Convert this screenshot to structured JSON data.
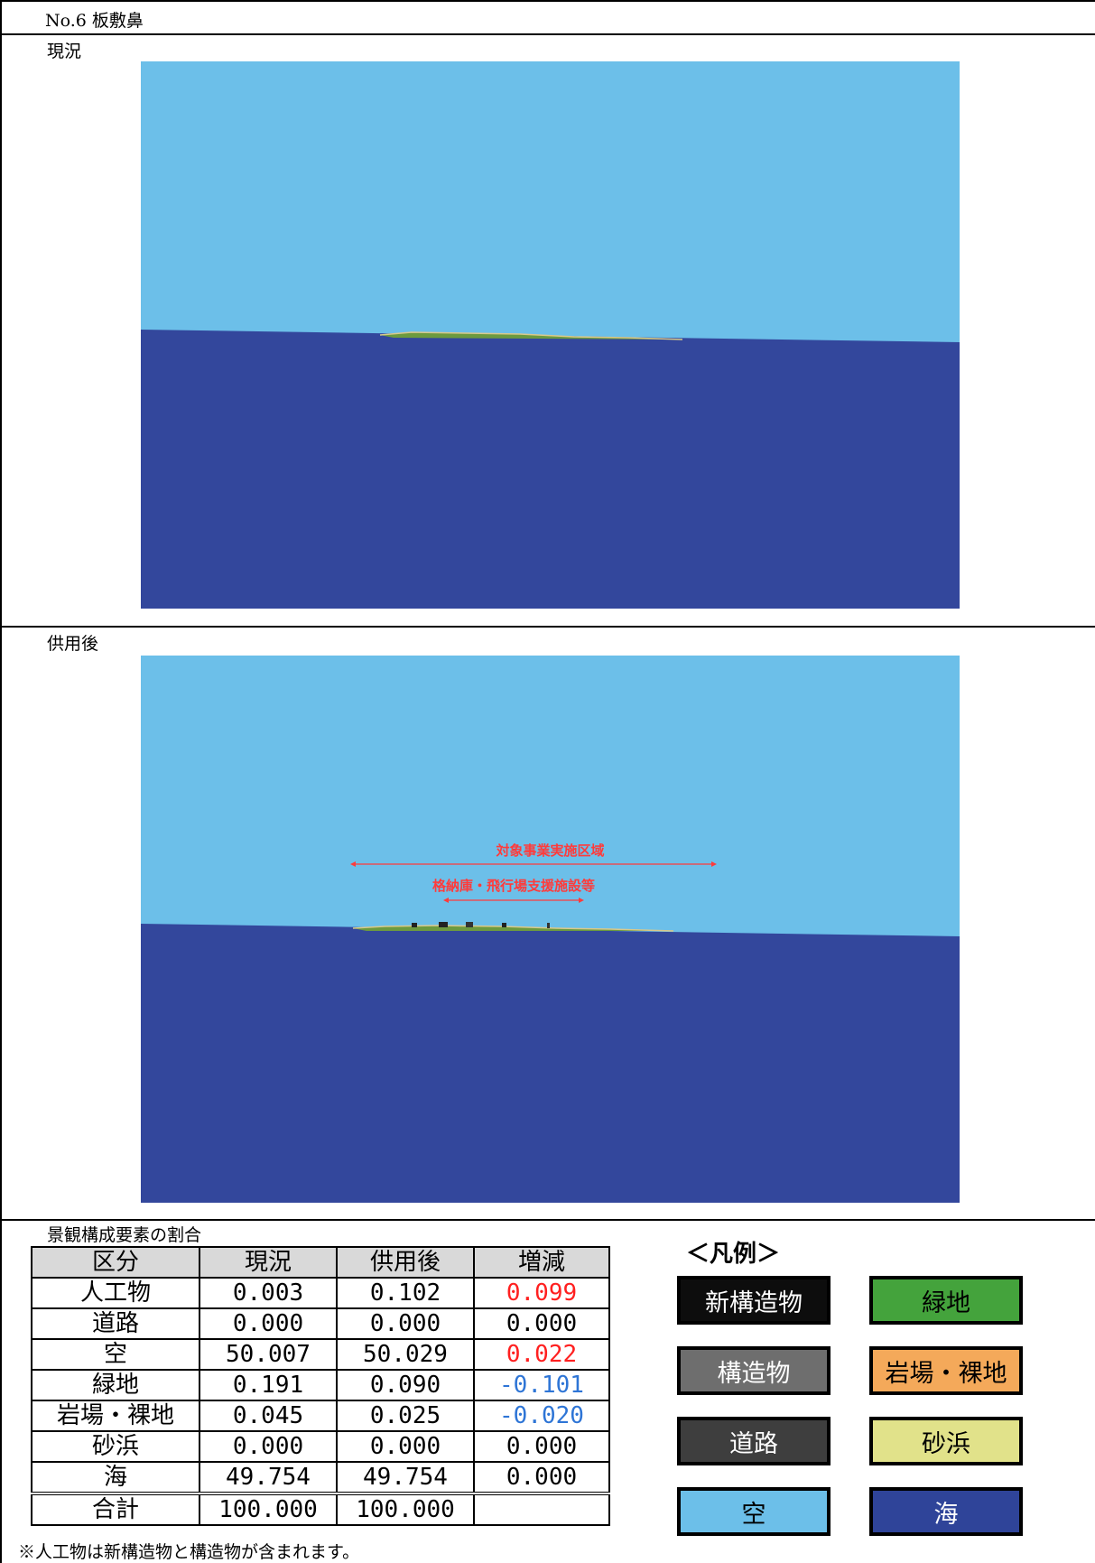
{
  "header": {
    "title": "No.6 板敷鼻"
  },
  "sections": {
    "current": {
      "label": "現況"
    },
    "after": {
      "label": "供用後",
      "annotation_outer": "対象事業実施区域",
      "annotation_inner": "格納庫・飛行場支援施設等"
    }
  },
  "table": {
    "caption": "景観構成要素の割合",
    "headers": [
      "区分",
      "現況",
      "供用後",
      "増減"
    ],
    "rows": [
      {
        "label": "人工物",
        "current": "0.003",
        "after": "0.102",
        "change": "0.099",
        "change_color": "red"
      },
      {
        "label": "道路",
        "current": "0.000",
        "after": "0.000",
        "change": "0.000",
        "change_color": "black"
      },
      {
        "label": "空",
        "current": "50.007",
        "after": "50.029",
        "change": "0.022",
        "change_color": "red"
      },
      {
        "label": "緑地",
        "current": "0.191",
        "after": "0.090",
        "change": "-0.101",
        "change_color": "blue"
      },
      {
        "label": "岩場・裸地",
        "current": "0.045",
        "after": "0.025",
        "change": "-0.020",
        "change_color": "blue"
      },
      {
        "label": "砂浜",
        "current": "0.000",
        "after": "0.000",
        "change": "0.000",
        "change_color": "black"
      },
      {
        "label": "海",
        "current": "49.754",
        "after": "49.754",
        "change": "0.000",
        "change_color": "black"
      }
    ],
    "total": {
      "label": "合計",
      "current": "100.000",
      "after": "100.000",
      "change": ""
    },
    "footnote": "※人工物は新構造物と構造物が含まれます。"
  },
  "legend": {
    "title": "＜凡例＞",
    "items": [
      {
        "label": "新構造物",
        "color": "#0d0d0d",
        "text_color": "#ffffff"
      },
      {
        "label": "緑地",
        "color": "#44a33c",
        "text_color": "#000000"
      },
      {
        "label": "構造物",
        "color": "#6e6e6e",
        "text_color": "#ffffff"
      },
      {
        "label": "岩場・裸地",
        "color": "#f4a95a",
        "text_color": "#000000"
      },
      {
        "label": "道路",
        "color": "#3e3e3e",
        "text_color": "#ffffff"
      },
      {
        "label": "砂浜",
        "color": "#e1e28a",
        "text_color": "#000000"
      },
      {
        "label": "空",
        "color": "#6cbfe9",
        "text_color": "#000000"
      },
      {
        "label": "海",
        "color": "#2f4499",
        "text_color": "#ffffff"
      }
    ]
  },
  "colors": {
    "sky": "#6cbfe9",
    "sea": "#33479c",
    "annotation": "#ff3b3b"
  }
}
